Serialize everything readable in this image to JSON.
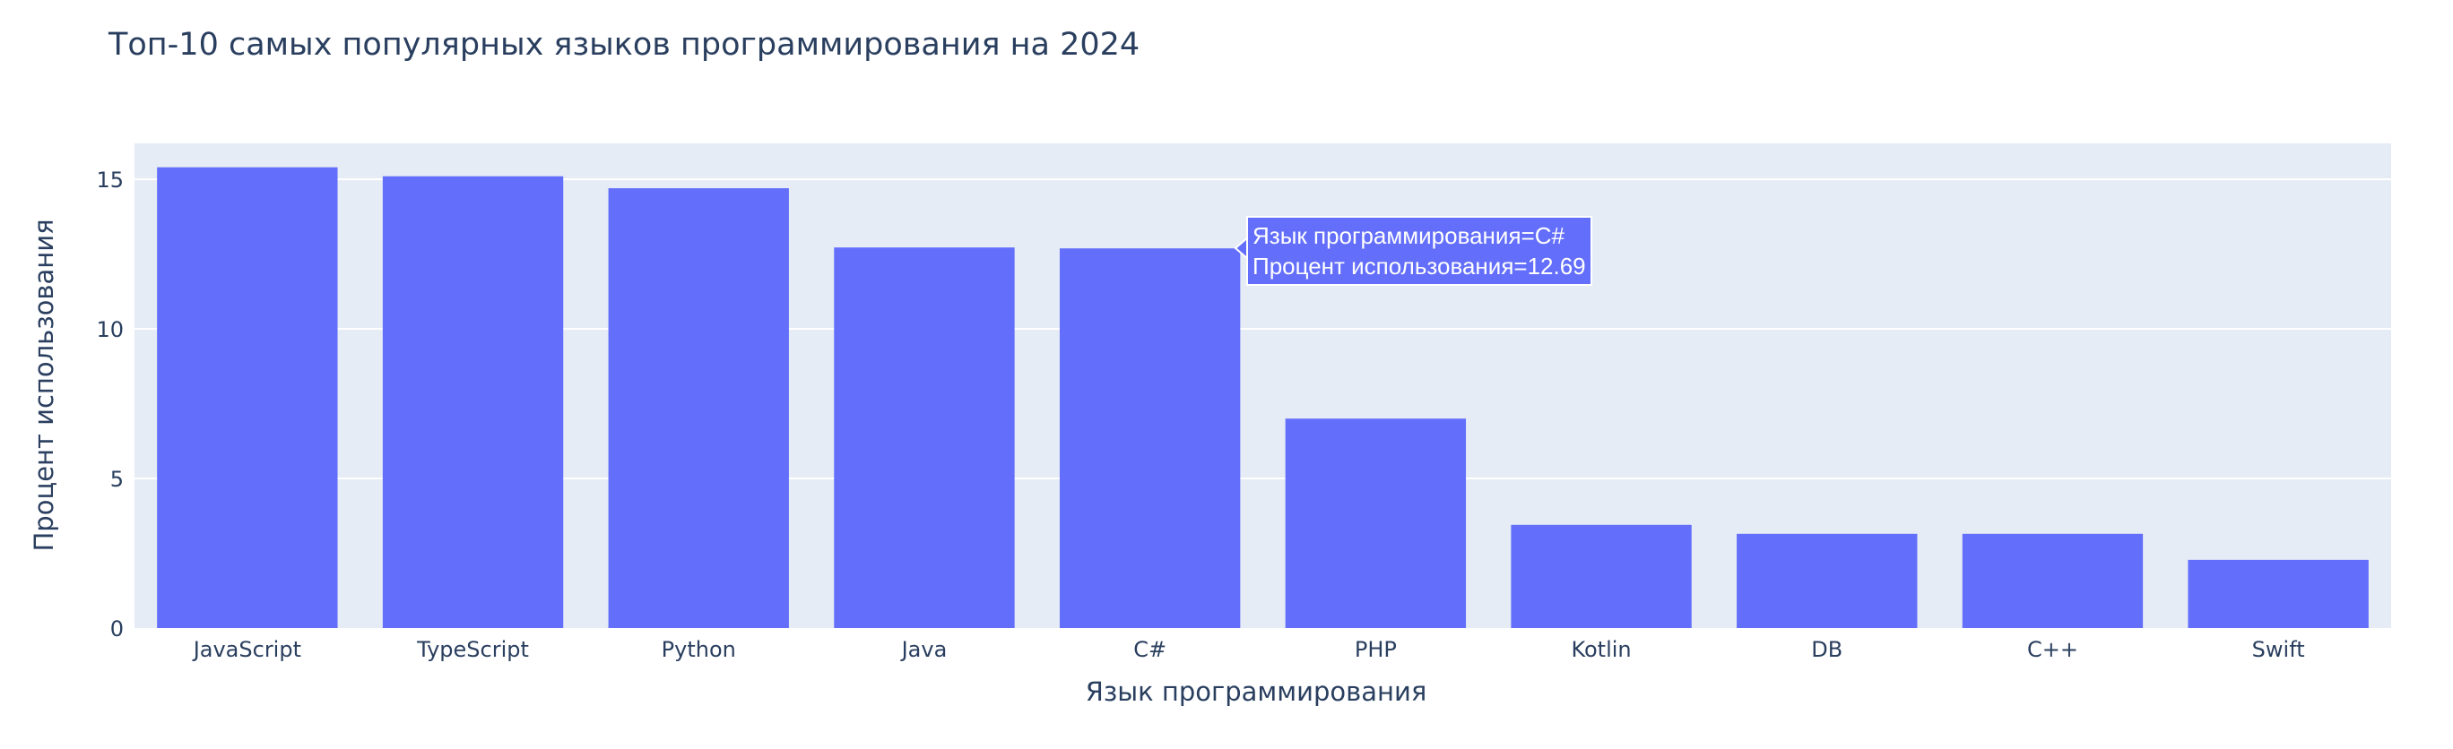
{
  "chart_data": {
    "type": "bar",
    "title": "Топ-10 самых популярных языков программирования на 2024",
    "xlabel": "Язык программирования",
    "ylabel": "Процент использования",
    "categories": [
      "JavaScript",
      "TypeScript",
      "Python",
      "Java",
      "C#",
      "PHP",
      "Kotlin",
      "DB",
      "C++",
      "Swift"
    ],
    "values": [
      15.4,
      15.1,
      14.7,
      12.72,
      12.69,
      7.0,
      3.45,
      3.15,
      3.15,
      2.28
    ],
    "ylim": [
      0,
      16.2
    ],
    "yticks": [
      0,
      5,
      10,
      15
    ],
    "grid": true,
    "bar_color": "#636efa",
    "plot_bg": "#e5ecf6",
    "hover": {
      "line1": "Язык программирования=C#",
      "line2": "Процент использования=12.69"
    }
  }
}
